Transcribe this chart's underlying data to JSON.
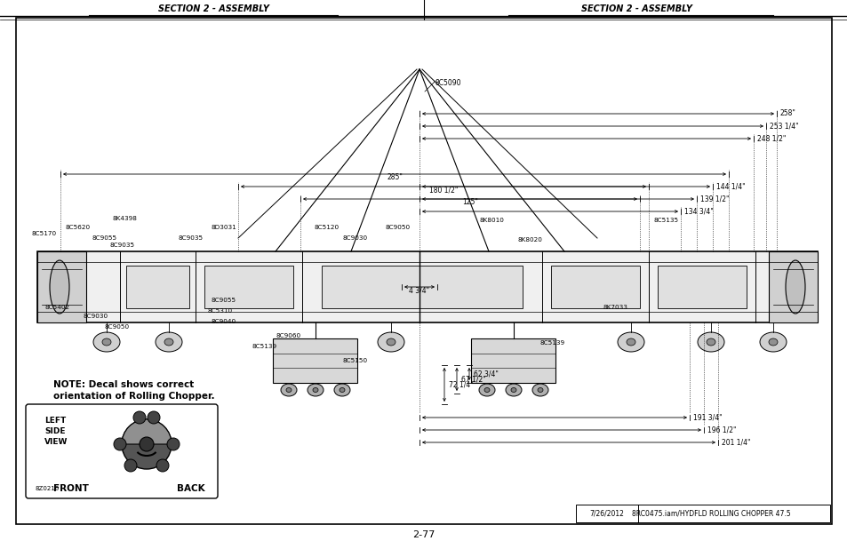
{
  "page_bg": "#ffffff",
  "header_text_left": "SECTION 2 - ASSEMBLY",
  "header_text_right": "SECTION 2 - ASSEMBLY",
  "footer_page": "2-77",
  "footer_date": "7/26/2012",
  "footer_filename": "8RC0475.iam/HYDFLD ROLLING CHOPPER 47.5",
  "note_text1": "NOTE: Decal shows correct",
  "note_text2": "orientation of Rolling Chopper.",
  "left_side_label": "LEFT\nSIDE\nVIEW",
  "front_label": "FRONT",
  "back_label": "BACK",
  "small_label": "8Z0210"
}
